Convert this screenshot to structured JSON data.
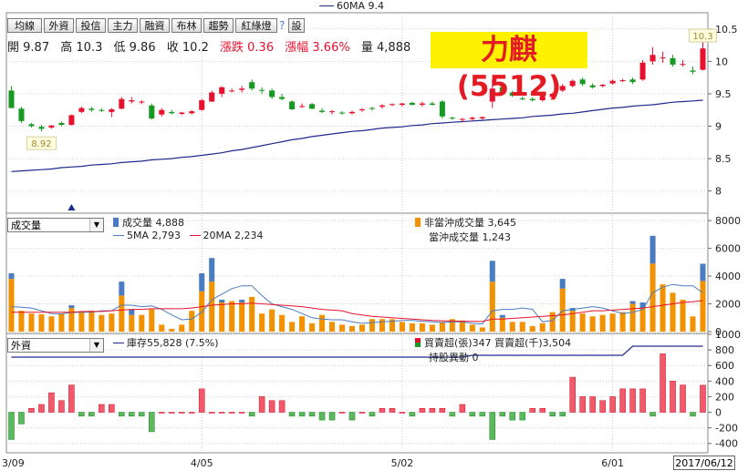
{
  "top_legend": "60MA 9.4",
  "toolbar": [
    "均線",
    "外資",
    "投信",
    "主力",
    "融資",
    "布林",
    "趨勢",
    "紅綠燈",
    "?",
    "設"
  ],
  "ohlc": {
    "open_label": "開",
    "open": "9.87",
    "high_label": "高",
    "high": "10.3",
    "low_label": "低",
    "low": "9.86",
    "close_label": "收",
    "close": "10.2",
    "change_label": "漲跌",
    "change": "0.36",
    "pct_label": "漲幅",
    "pct": "3.66%",
    "vol_label": "量",
    "vol": "4,888"
  },
  "stock_title": "力麒(5512)",
  "volume_panel": {
    "selector": "成交量",
    "vol_legend": "成交量 4,888",
    "ma5_legend": "5MA 2,793",
    "ma20_legend": "20MA 2,234",
    "nonday_legend": "非當沖成交量 3,645",
    "day_legend": "當沖成交量 1,243"
  },
  "inst_panel": {
    "selector": "外資",
    "holding_legend": "庫存55,828 (7.5%)",
    "buy_legend": "買賣超(張)347 買賣超(千)3,504",
    "change_legend": "持股異動 0"
  },
  "current_date": "2017/06/12",
  "colors": {
    "up": "#e8112d",
    "down": "#169a21",
    "ma60": "#1f2a8c",
    "vol_base": "#f39200",
    "vol_day": "#4a7cc2",
    "ma5": "#4a7cc2",
    "ma20": "#e8112d",
    "bar_up": "#f05a6a",
    "bar_down": "#5cb85c",
    "holding": "#1f2a8c"
  },
  "chart_data": {
    "type": "candlestick",
    "x_tick_labels": [
      "3/09",
      "4/05",
      "5/02",
      "6/01"
    ],
    "x_tick_index": [
      0,
      19,
      39,
      60
    ],
    "price_ticks": [
      8,
      8.5,
      9,
      9.5,
      10,
      10.5
    ],
    "price_ylim": [
      7.7,
      10.75
    ],
    "min_marker": "8.92",
    "max_marker": "10.3",
    "candles": [
      [
        9.55,
        9.62,
        9.28,
        9.28
      ],
      [
        9.27,
        9.3,
        9.05,
        9.08
      ],
      [
        9.03,
        9.05,
        8.98,
        9.0
      ],
      [
        8.99,
        9.02,
        8.92,
        8.96
      ],
      [
        8.98,
        9.02,
        8.96,
        9.01
      ],
      [
        9.05,
        9.07,
        9.0,
        9.02
      ],
      [
        9.02,
        9.18,
        9.01,
        9.17
      ],
      [
        9.22,
        9.3,
        9.2,
        9.28
      ],
      [
        9.27,
        9.3,
        9.22,
        9.25
      ],
      [
        9.25,
        9.28,
        9.22,
        9.24
      ],
      [
        9.22,
        9.28,
        9.14,
        9.26
      ],
      [
        9.27,
        9.45,
        9.26,
        9.42
      ],
      [
        9.38,
        9.45,
        9.35,
        9.4
      ],
      [
        9.37,
        9.4,
        9.34,
        9.38
      ],
      [
        9.32,
        9.35,
        9.1,
        9.12
      ],
      [
        9.18,
        9.28,
        9.15,
        9.25
      ],
      [
        9.22,
        9.25,
        9.18,
        9.2
      ],
      [
        9.19,
        9.22,
        9.17,
        9.21
      ],
      [
        9.2,
        9.25,
        9.18,
        9.23
      ],
      [
        9.25,
        9.42,
        9.24,
        9.4
      ],
      [
        9.38,
        9.55,
        9.37,
        9.52
      ],
      [
        9.5,
        9.62,
        9.45,
        9.6
      ],
      [
        9.55,
        9.58,
        9.52,
        9.55
      ],
      [
        9.56,
        9.62,
        9.52,
        9.58
      ],
      [
        9.68,
        9.72,
        9.55,
        9.58
      ],
      [
        9.56,
        9.6,
        9.5,
        9.55
      ],
      [
        9.55,
        9.58,
        9.42,
        9.45
      ],
      [
        9.45,
        9.5,
        9.4,
        9.42
      ],
      [
        9.38,
        9.4,
        9.25,
        9.26
      ],
      [
        9.3,
        9.35,
        9.28,
        9.31
      ],
      [
        9.34,
        9.36,
        9.26,
        9.27
      ],
      [
        9.24,
        9.28,
        9.2,
        9.22
      ],
      [
        9.22,
        9.25,
        9.18,
        9.23
      ],
      [
        9.21,
        9.23,
        9.18,
        9.2
      ],
      [
        9.2,
        9.24,
        9.18,
        9.22
      ],
      [
        9.25,
        9.28,
        9.22,
        9.26
      ],
      [
        9.28,
        9.3,
        9.24,
        9.27
      ],
      [
        9.3,
        9.34,
        9.27,
        9.32
      ],
      [
        9.33,
        9.35,
        9.31,
        9.34
      ],
      [
        9.33,
        9.36,
        9.3,
        9.35
      ],
      [
        9.36,
        9.38,
        9.32,
        9.33
      ],
      [
        9.33,
        9.38,
        9.3,
        9.35
      ],
      [
        9.35,
        9.38,
        9.32,
        9.33
      ],
      [
        9.38,
        9.4,
        9.12,
        9.15
      ],
      [
        9.13,
        9.15,
        9.1,
        9.12
      ],
      [
        9.1,
        9.13,
        9.07,
        9.11
      ],
      [
        9.11,
        9.15,
        9.08,
        9.13
      ],
      [
        9.12,
        9.15,
        9.1,
        9.14
      ],
      [
        9.38,
        9.72,
        9.28,
        9.58
      ],
      [
        9.6,
        9.65,
        9.5,
        9.52
      ],
      [
        9.52,
        9.55,
        9.45,
        9.47
      ],
      [
        9.43,
        9.46,
        9.4,
        9.42
      ],
      [
        9.42,
        9.45,
        9.38,
        9.4
      ],
      [
        9.4,
        9.48,
        9.38,
        9.47
      ],
      [
        9.45,
        9.52,
        9.44,
        9.5
      ],
      [
        9.55,
        9.65,
        9.53,
        9.62
      ],
      [
        9.62,
        9.72,
        9.6,
        9.7
      ],
      [
        9.72,
        9.75,
        9.62,
        9.65
      ],
      [
        9.63,
        9.66,
        9.58,
        9.6
      ],
      [
        9.62,
        9.65,
        9.6,
        9.64
      ],
      [
        9.66,
        9.72,
        9.64,
        9.7
      ],
      [
        9.7,
        9.73,
        9.68,
        9.71
      ],
      [
        9.72,
        9.75,
        9.65,
        9.68
      ],
      [
        9.72,
        10.02,
        9.7,
        9.98
      ],
      [
        10.0,
        10.22,
        9.95,
        10.1
      ],
      [
        10.05,
        10.15,
        9.98,
        10.06
      ],
      [
        10.05,
        10.1,
        9.92,
        9.95
      ],
      [
        9.96,
        10.02,
        9.92,
        9.96
      ],
      [
        9.86,
        9.92,
        9.8,
        9.84
      ],
      [
        9.87,
        10.3,
        9.86,
        10.2
      ]
    ],
    "ma60": [
      8.3,
      8.31,
      8.32,
      8.33,
      8.34,
      8.36,
      8.37,
      8.38,
      8.4,
      8.41,
      8.42,
      8.44,
      8.45,
      8.46,
      8.48,
      8.49,
      8.5,
      8.52,
      8.53,
      8.55,
      8.57,
      8.59,
      8.62,
      8.64,
      8.67,
      8.7,
      8.73,
      8.76,
      8.79,
      8.81,
      8.84,
      8.86,
      8.88,
      8.9,
      8.92,
      8.93,
      8.95,
      8.97,
      8.98,
      8.99,
      9.01,
      9.02,
      9.04,
      9.05,
      9.06,
      9.07,
      9.08,
      9.09,
      9.1,
      9.11,
      9.12,
      9.13,
      9.15,
      9.16,
      9.17,
      9.19,
      9.2,
      9.22,
      9.24,
      9.26,
      9.28,
      9.29,
      9.31,
      9.32,
      9.33,
      9.35,
      9.37,
      9.38,
      9.39,
      9.4
    ],
    "volume": [
      4200,
      1500,
      1300,
      1250,
      1100,
      1300,
      1900,
      1400,
      1500,
      1200,
      1300,
      3600,
      1600,
      1200,
      1600,
      500,
      200,
      500,
      1500,
      4200,
      5300,
      2300,
      2200,
      2300,
      2500,
      1300,
      1600,
      1200,
      700,
      1100,
      600,
      1200,
      700,
      500,
      400,
      500,
      900,
      900,
      900,
      700,
      600,
      600,
      500,
      700,
      900,
      800,
      500,
      300,
      5100,
      1200,
      700,
      700,
      400,
      600,
      1400,
      3800,
      1700,
      1300,
      1100,
      1200,
      1300,
      1400,
      2200,
      2100,
      6900,
      3400,
      2800,
      2300,
      1100,
      4888
    ],
    "day_trade": [
      400,
      0,
      0,
      0,
      0,
      0,
      200,
      0,
      0,
      0,
      0,
      1000,
      400,
      0,
      0,
      0,
      0,
      0,
      0,
      1300,
      1700,
      200,
      0,
      200,
      0,
      0,
      0,
      0,
      0,
      0,
      0,
      0,
      0,
      0,
      0,
      0,
      0,
      0,
      0,
      0,
      0,
      0,
      0,
      0,
      0,
      0,
      0,
      0,
      1500,
      200,
      0,
      0,
      0,
      0,
      0,
      700,
      200,
      0,
      0,
      0,
      0,
      0,
      200,
      400,
      2000,
      0,
      0,
      0,
      0,
      1243
    ],
    "vol_ticks": [
      0,
      2000,
      4000,
      6000,
      8000
    ],
    "vol_ylim": [
      0,
      8400
    ],
    "ma5": [
      1800,
      1750,
      1700,
      1500,
      1300,
      1280,
      1380,
      1400,
      1400,
      1500,
      1500,
      1900,
      1900,
      1800,
      1850,
      1600,
      1200,
      850,
      900,
      1400,
      2300,
      2700,
      3100,
      3300,
      3300,
      2600,
      2000,
      1800,
      1600,
      1300,
      1000,
      900,
      850,
      850,
      700,
      600,
      650,
      700,
      750,
      800,
      800,
      750,
      700,
      650,
      700,
      700,
      600,
      550,
      1500,
      1600,
      1600,
      1700,
      1600,
      700,
      800,
      1500,
      1600,
      1700,
      1800,
      1700,
      1500,
      1300,
      1400,
      1600,
      2800,
      3200,
      3400,
      3300,
      3300,
      2793
    ],
    "ma20": [
      1400,
      1400,
      1400,
      1400,
      1400,
      1400,
      1400,
      1450,
      1450,
      1450,
      1500,
      1550,
      1600,
      1600,
      1650,
      1650,
      1650,
      1650,
      1700,
      1800,
      1900,
      1950,
      2000,
      2000,
      2050,
      2000,
      1950,
      1900,
      1850,
      1800,
      1700,
      1600,
      1550,
      1500,
      1300,
      1200,
      1100,
      1050,
      1000,
      950,
      900,
      850,
      800,
      780,
      760,
      750,
      740,
      730,
      900,
      900,
      950,
      1000,
      1050,
      1100,
      1150,
      1200,
      1300,
      1400,
      1500,
      1500,
      1550,
      1600,
      1650,
      1700,
      1800,
      1900,
      2000,
      2100,
      2150,
      2234
    ],
    "inst_buy": [
      -350,
      -150,
      50,
      100,
      250,
      150,
      350,
      -50,
      -50,
      100,
      100,
      -50,
      -50,
      -50,
      -250,
      0,
      0,
      0,
      0,
      300,
      0,
      0,
      0,
      0,
      -50,
      200,
      150,
      150,
      -50,
      -50,
      -50,
      -100,
      -100,
      0,
      -100,
      0,
      -50,
      50,
      50,
      0,
      -50,
      50,
      50,
      50,
      -50,
      100,
      -50,
      -50,
      -350,
      -50,
      -100,
      -100,
      50,
      50,
      -50,
      -50,
      450,
      200,
      200,
      150,
      200,
      300,
      300,
      300,
      -50,
      750,
      400,
      350,
      -50,
      347
    ],
    "inst_ticks": [
      -400,
      -200,
      0,
      200,
      400,
      600,
      800,
      1000
    ],
    "inst_ylim": [
      -520,
      1000
    ]
  }
}
